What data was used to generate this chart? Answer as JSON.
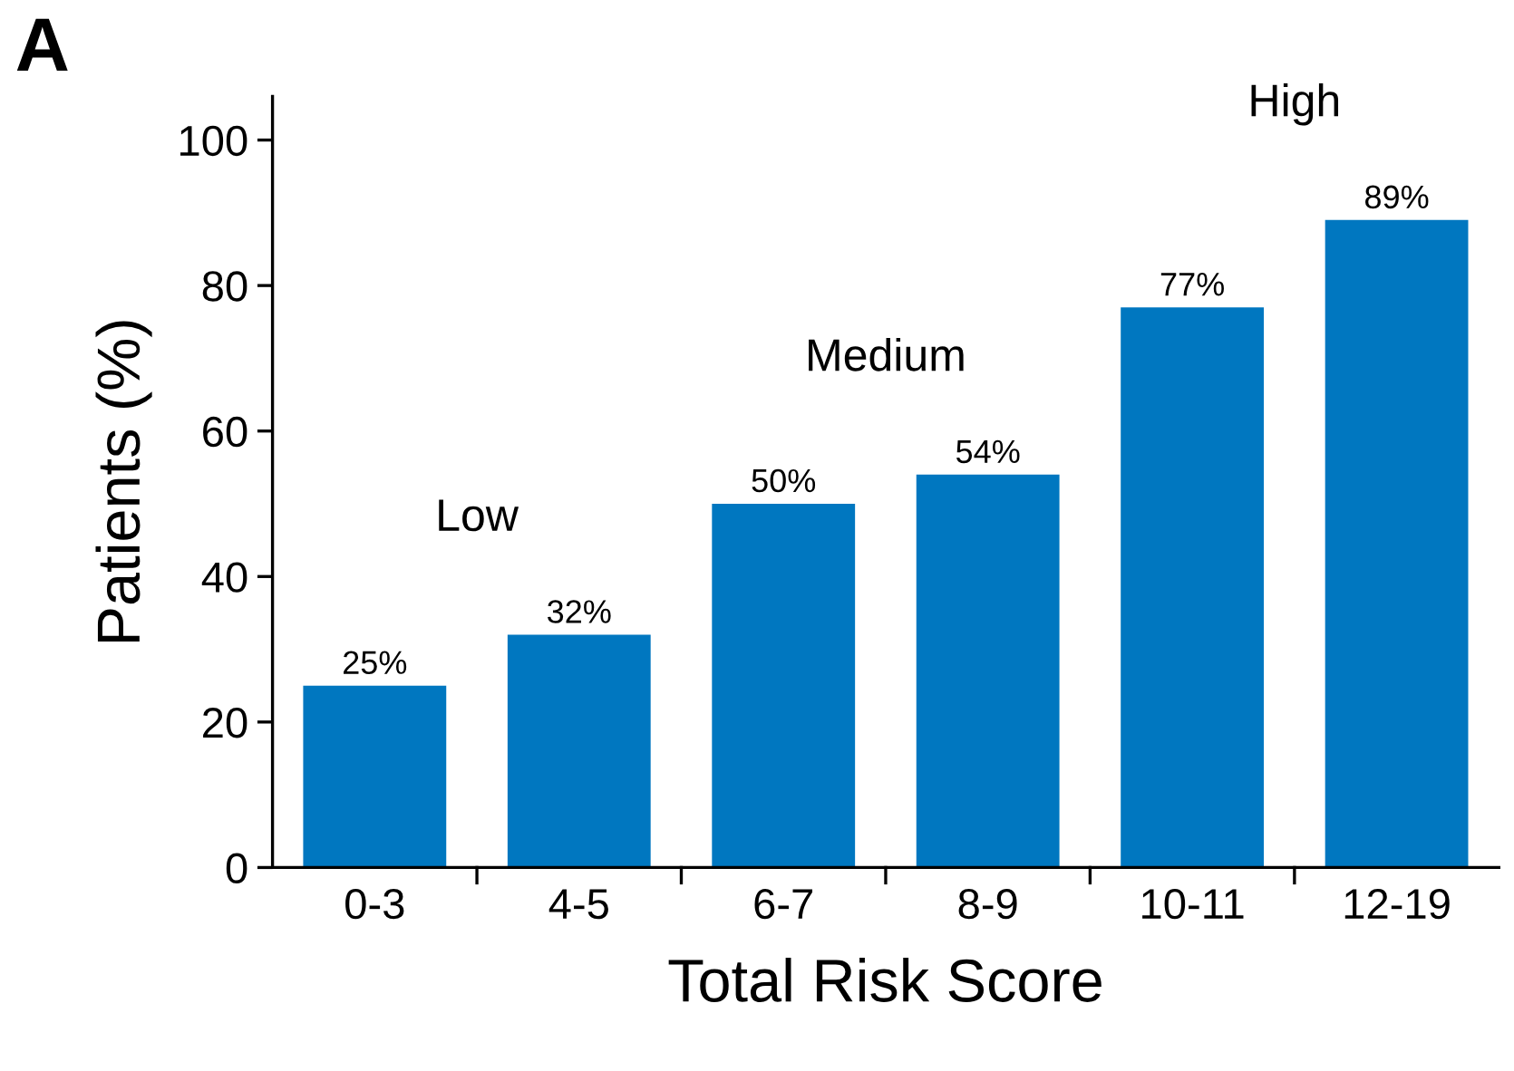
{
  "chart_data": {
    "type": "bar",
    "title": "A",
    "xlabel": "Total Risk Score",
    "ylabel": "Patients (%)",
    "categories": [
      "0-3",
      "4-5",
      "6-7",
      "8-9",
      "10-11",
      "12-19"
    ],
    "values": [
      25,
      32,
      50,
      54,
      77,
      89
    ],
    "value_labels": [
      "25%",
      "32%",
      "50%",
      "54%",
      "77%",
      "89%"
    ],
    "color": "#0077c0",
    "annotations": [
      "Low",
      "Medium",
      "High"
    ],
    "ylim": [
      0,
      106
    ],
    "yticks": [
      0,
      20,
      40,
      60,
      80,
      100
    ],
    "grid": false,
    "legend": false
  }
}
